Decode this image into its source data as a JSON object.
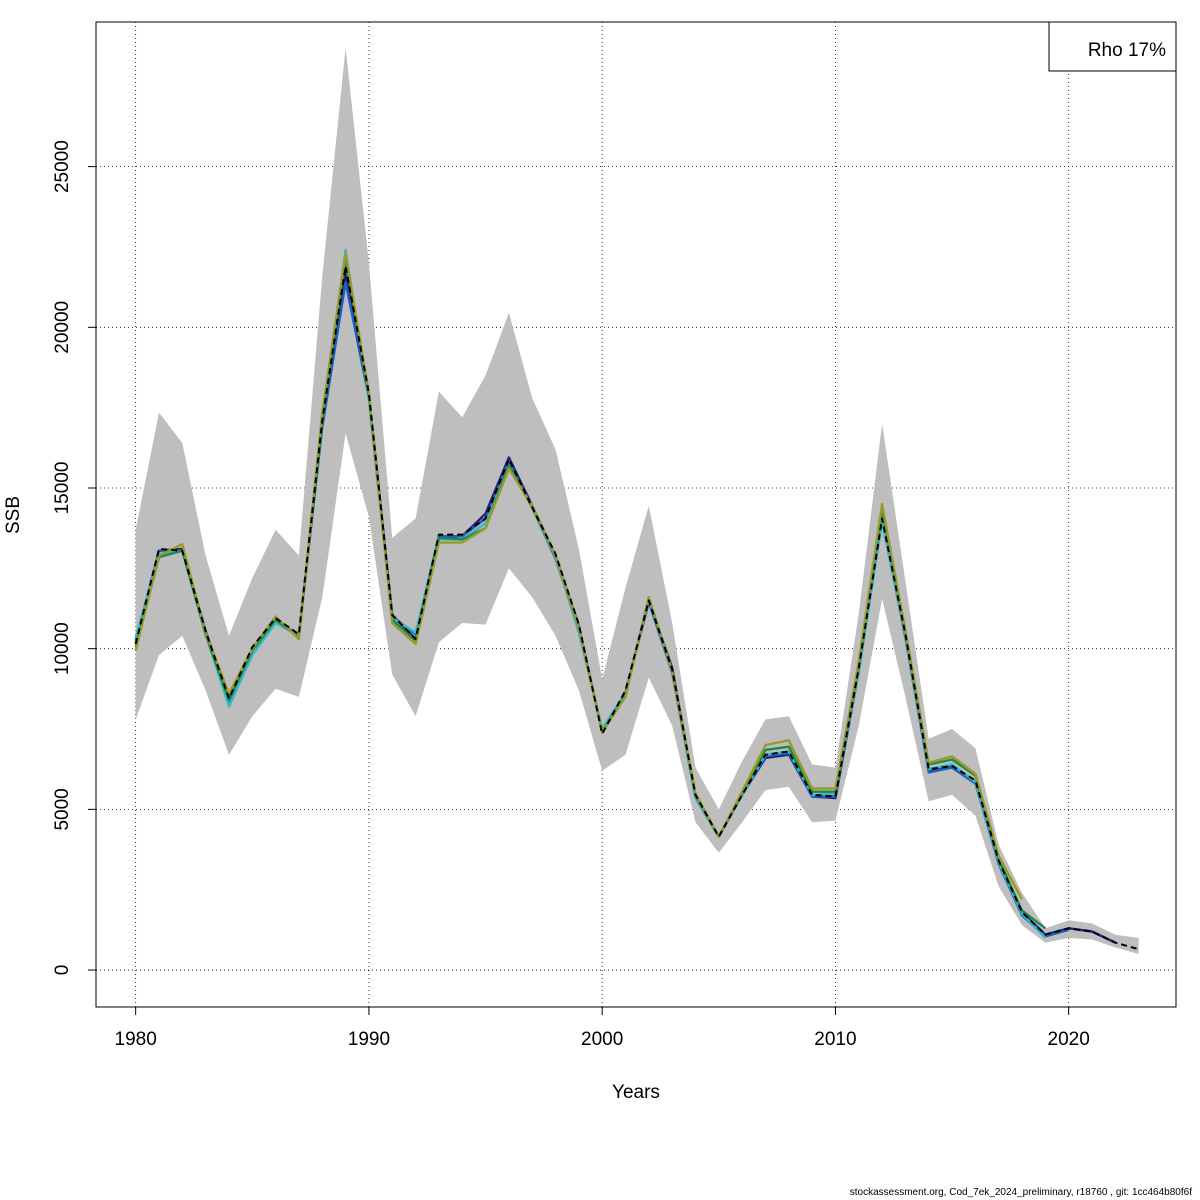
{
  "chart_data": {
    "type": "line",
    "title": "",
    "xlabel": "Years",
    "ylabel": "SSB",
    "xlim": [
      1978.3,
      1984.6
    ],
    "ylim": [
      -1150,
      29500
    ],
    "x_ticks": [
      1980,
      1990,
      2000,
      2010,
      2020
    ],
    "y_ticks": [
      0,
      5000,
      10000,
      15000,
      20000,
      25000
    ],
    "grid": true,
    "legend": {
      "position": "top-right",
      "text": "Rho 17%"
    },
    "band_color": "#bebebe",
    "band": {
      "x": [
        1980,
        1981,
        1982,
        1983,
        1984,
        1985,
        1986,
        1987,
        1988,
        1989,
        1990,
        1991,
        1992,
        1993,
        1994,
        1995,
        1996,
        1997,
        1998,
        1999,
        2000,
        2001,
        2002,
        2003,
        2004,
        2005,
        2006,
        2007,
        2008,
        2009,
        2010,
        2011,
        2012,
        2013,
        2014,
        2015,
        2016,
        2017,
        2018,
        2019,
        2020,
        2021,
        2022,
        2023
      ],
      "upper": [
        13700,
        17350,
        16400,
        12900,
        10400,
        12200,
        13700,
        12900,
        21600,
        28700,
        22000,
        13450,
        14050,
        18000,
        17200,
        18500,
        20450,
        17800,
        16200,
        13100,
        9050,
        11900,
        14450,
        10800,
        6300,
        5000,
        6500,
        7800,
        7900,
        6400,
        6300,
        11100,
        17000,
        12100,
        7200,
        7500,
        6900,
        3900,
        2400,
        1300,
        1550,
        1450,
        1100,
        1000
      ],
      "lower": [
        7800,
        9800,
        10400,
        8700,
        6700,
        7900,
        8750,
        8500,
        11600,
        16700,
        14100,
        9200,
        7900,
        10200,
        10800,
        10750,
        12500,
        11600,
        10400,
        8700,
        6200,
        6700,
        9100,
        7600,
        4600,
        3650,
        4600,
        5600,
        5700,
        4600,
        4650,
        7600,
        11550,
        8500,
        5250,
        5450,
        4800,
        2600,
        1400,
        850,
        1000,
        950,
        700,
        500
      ]
    },
    "series": [
      {
        "color": "#000000",
        "dashed": true,
        "values": [
          10150,
          13100,
          13050,
          10550,
          8450,
          10050,
          10950,
          10450,
          17100,
          21900,
          17950,
          11050,
          10300,
          13550,
          13550,
          14050,
          15900,
          14400,
          12950,
          10750,
          7350,
          8700,
          11500,
          9350,
          5450,
          4150,
          5450,
          6700,
          6800,
          5450,
          5400,
          9400,
          14050,
          10450,
          6250,
          6350,
          5900,
          3400,
          1800,
          1100,
          1300,
          1200,
          850,
          650
        ]
      },
      {
        "color": "#2b1a7a",
        "dashed": false,
        "values": [
          10150,
          13050,
          13100,
          10550,
          8450,
          10000,
          10900,
          10400,
          17000,
          21650,
          17900,
          11050,
          10300,
          13450,
          13500,
          14200,
          15950,
          14450,
          12900,
          10700,
          7400,
          8600,
          11500,
          9400,
          5400,
          4150,
          5450,
          6600,
          6700,
          5400,
          5350,
          9300,
          14000,
          10350,
          6200,
          6350,
          5850,
          3350,
          1800,
          1100,
          1300,
          1200,
          850,
          null
        ]
      },
      {
        "color": "#1b5fbf",
        "dashed": false,
        "values": [
          10250,
          13050,
          13050,
          10550,
          8300,
          9950,
          10850,
          10400,
          16900,
          21400,
          17800,
          11000,
          10450,
          13500,
          13500,
          14050,
          15850,
          14400,
          12800,
          10600,
          7450,
          8650,
          11450,
          9250,
          5350,
          4150,
          5450,
          6650,
          6750,
          5400,
          5400,
          9350,
          14050,
          10400,
          6150,
          6300,
          5800,
          3300,
          1700,
          1050,
          1250,
          null,
          null,
          null
        ]
      },
      {
        "color": "#35b7c4",
        "dashed": false,
        "values": [
          10350,
          12950,
          13050,
          10450,
          8200,
          9800,
          10800,
          10400,
          17100,
          22400,
          17750,
          10950,
          10500,
          13400,
          13400,
          13900,
          15700,
          14400,
          12850,
          10500,
          7500,
          8650,
          11550,
          9300,
          5350,
          4150,
          5450,
          6700,
          6800,
          5450,
          5500,
          9300,
          13950,
          10400,
          6250,
          6400,
          5850,
          3350,
          1750,
          1000,
          null,
          null,
          null,
          null
        ]
      },
      {
        "color": "#1a8a4a",
        "dashed": false,
        "values": [
          10050,
          12850,
          13050,
          10450,
          8400,
          9950,
          10900,
          10350,
          17100,
          22150,
          17850,
          10900,
          10250,
          13450,
          13400,
          13750,
          15700,
          14400,
          12900,
          10650,
          7400,
          8550,
          11600,
          9300,
          5450,
          4150,
          5500,
          6850,
          6950,
          5550,
          5550,
          9500,
          14350,
          10550,
          6400,
          6550,
          6050,
          3450,
          1850,
          1300,
          null,
          null,
          null,
          null
        ]
      },
      {
        "color": "#9a9a2a",
        "dashed": false,
        "values": [
          9950,
          12900,
          13250,
          10500,
          8600,
          10000,
          11000,
          10300,
          17350,
          22300,
          17950,
          10800,
          10150,
          13300,
          13300,
          13750,
          15600,
          14450,
          12900,
          10650,
          7400,
          8500,
          11600,
          9300,
          5500,
          4150,
          5550,
          7000,
          7150,
          5650,
          5650,
          9600,
          14500,
          10550,
          6450,
          6650,
          6100,
          3550,
          2200,
          null,
          null,
          null,
          null,
          null
        ]
      }
    ]
  },
  "footer_text": "stockassessment.org, Cod_7ek_2024_preliminary, r18760 , git: 1cc464b80f6f"
}
